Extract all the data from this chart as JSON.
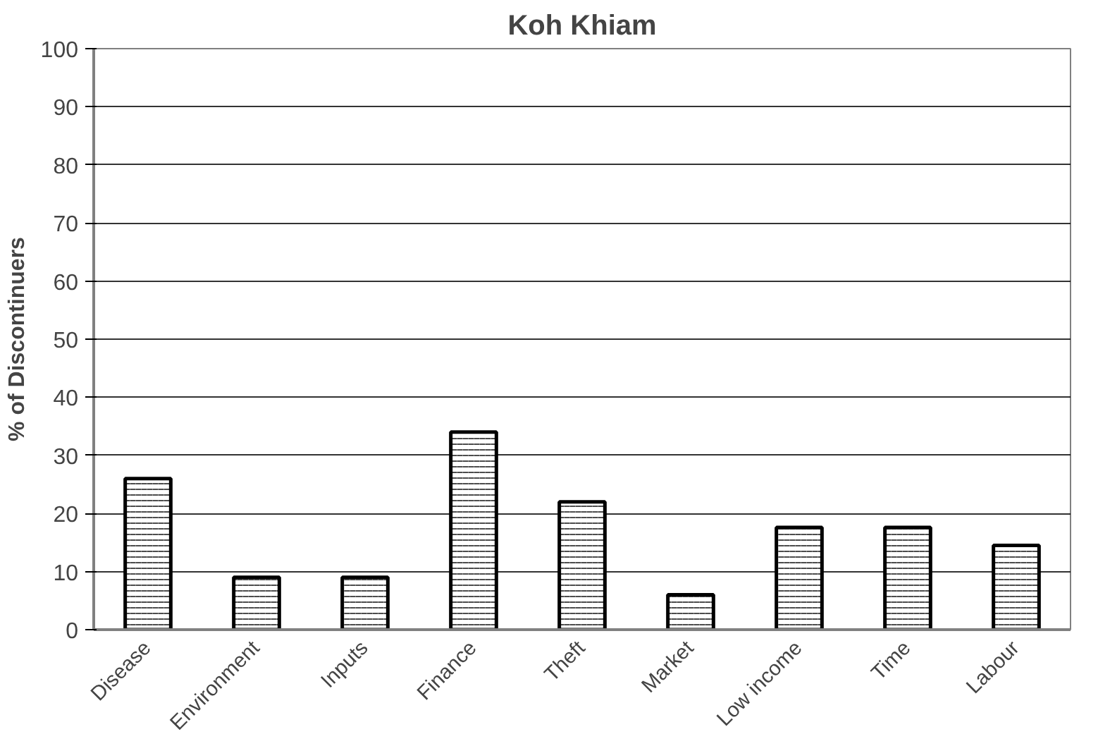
{
  "chart_data": {
    "type": "bar",
    "title": "Koh Khiam",
    "ylabel": "% of Discontinuers",
    "categories": [
      "Disease",
      "Environment",
      "Inputs",
      "Finance",
      "Theft",
      "Market",
      "Low income",
      "Time",
      "Labour"
    ],
    "values": [
      26,
      9,
      9,
      34,
      22,
      6,
      17.6,
      17.6,
      14.5
    ],
    "color": "#ffffff",
    "ylim": [
      0,
      100
    ],
    "yticks": [
      0,
      10,
      20,
      30,
      40,
      50,
      60,
      70,
      80,
      90,
      100
    ],
    "grid": "y"
  }
}
